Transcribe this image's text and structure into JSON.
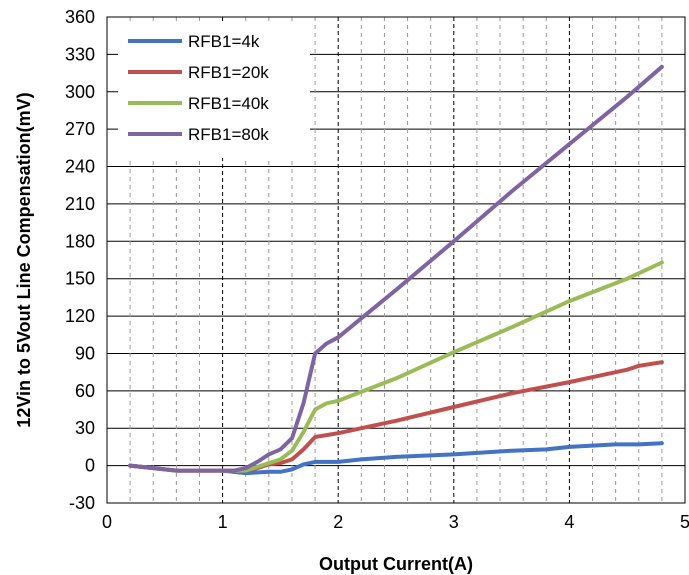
{
  "chart_data": {
    "type": "line",
    "xlabel": "Output Current(A)",
    "ylabel": "12Vin to 5Vout Line Compensation(mV)",
    "xlim": [
      0,
      5
    ],
    "ylim": [
      -30,
      360
    ],
    "x_ticks": [
      0,
      1,
      2,
      3,
      4,
      5
    ],
    "y_ticks": [
      -30,
      0,
      30,
      60,
      90,
      120,
      150,
      180,
      210,
      240,
      270,
      300,
      330,
      360
    ],
    "grid": true,
    "legend_position": "top-left",
    "series": [
      {
        "name": "RFB1=4k",
        "color": "#4472C4",
        "points": [
          [
            0.2,
            0
          ],
          [
            0.4,
            -2
          ],
          [
            0.6,
            -4
          ],
          [
            0.8,
            -4
          ],
          [
            1.0,
            -4
          ],
          [
            1.2,
            -6
          ],
          [
            1.4,
            -5
          ],
          [
            1.5,
            -5
          ],
          [
            1.6,
            -3
          ],
          [
            1.7,
            1
          ],
          [
            1.8,
            3
          ],
          [
            2.0,
            3
          ],
          [
            2.2,
            5
          ],
          [
            2.5,
            7
          ],
          [
            3.0,
            9
          ],
          [
            3.5,
            12
          ],
          [
            3.8,
            13
          ],
          [
            4.0,
            15
          ],
          [
            4.4,
            17
          ],
          [
            4.6,
            17
          ],
          [
            4.8,
            18
          ]
        ]
      },
      {
        "name": "RFB1=20k",
        "color": "#C0504D",
        "points": [
          [
            0.2,
            0
          ],
          [
            0.4,
            -2
          ],
          [
            0.6,
            -4
          ],
          [
            0.8,
            -4
          ],
          [
            1.0,
            -4
          ],
          [
            1.2,
            -4
          ],
          [
            1.3,
            -2
          ],
          [
            1.4,
            1
          ],
          [
            1.5,
            2
          ],
          [
            1.6,
            5
          ],
          [
            1.7,
            13
          ],
          [
            1.8,
            23
          ],
          [
            2.0,
            26
          ],
          [
            2.2,
            30
          ],
          [
            2.5,
            36
          ],
          [
            3.0,
            47
          ],
          [
            3.5,
            58
          ],
          [
            4.0,
            67
          ],
          [
            4.5,
            77
          ],
          [
            4.6,
            80
          ],
          [
            4.8,
            83
          ]
        ]
      },
      {
        "name": "RFB1=40k",
        "color": "#9BBB59",
        "points": [
          [
            0.2,
            0
          ],
          [
            0.4,
            -2
          ],
          [
            0.6,
            -4
          ],
          [
            0.8,
            -4
          ],
          [
            1.0,
            -4
          ],
          [
            1.2,
            -4
          ],
          [
            1.3,
            -1
          ],
          [
            1.4,
            2
          ],
          [
            1.5,
            5
          ],
          [
            1.6,
            12
          ],
          [
            1.7,
            27
          ],
          [
            1.8,
            45
          ],
          [
            1.9,
            50
          ],
          [
            2.0,
            52
          ],
          [
            2.5,
            70
          ],
          [
            3.0,
            91
          ],
          [
            3.5,
            111
          ],
          [
            4.0,
            132
          ],
          [
            4.5,
            150
          ],
          [
            4.8,
            163
          ]
        ]
      },
      {
        "name": "RFB1=80k",
        "color": "#8064A2",
        "points": [
          [
            0.2,
            0
          ],
          [
            0.4,
            -2
          ],
          [
            0.6,
            -4
          ],
          [
            0.8,
            -4
          ],
          [
            1.0,
            -4
          ],
          [
            1.1,
            -4
          ],
          [
            1.2,
            -2
          ],
          [
            1.3,
            3
          ],
          [
            1.4,
            9
          ],
          [
            1.5,
            13
          ],
          [
            1.6,
            22
          ],
          [
            1.7,
            50
          ],
          [
            1.8,
            90
          ],
          [
            1.9,
            98
          ],
          [
            2.0,
            103
          ],
          [
            2.5,
            141
          ],
          [
            3.0,
            180
          ],
          [
            3.5,
            220
          ],
          [
            4.0,
            258
          ],
          [
            4.5,
            296
          ],
          [
            4.8,
            320
          ]
        ]
      }
    ]
  }
}
